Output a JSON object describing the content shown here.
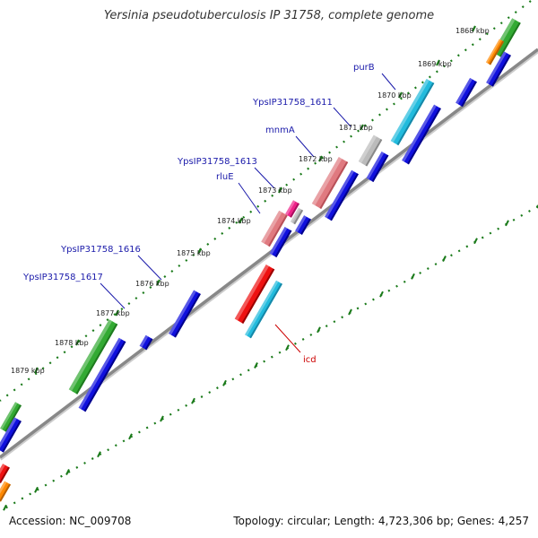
{
  "title": "Yersinia pseudotuberculosis IP 31758, complete genome",
  "footer": {
    "accession": "Accession: NC_009708",
    "summary": "Topology: circular; Length: 4,723,306 bp; Genes: 4,257"
  },
  "colors": {
    "dots": "#1a7a1a",
    "backbone": "#888888",
    "label_blue": "#1a1aaa",
    "label_red": "#cc0000",
    "gene_blue": "#1010dd",
    "gene_green": "#33aa33",
    "gene_cyan": "#22bbdd",
    "gene_red": "#ee1111",
    "gene_pink": "#e07a80",
    "gene_grey": "#bbbbbb",
    "gene_magenta": "#ee2288",
    "gene_orange": "#ff8800"
  },
  "ticks": [
    {
      "label": "1868 kbp"
    },
    {
      "label": "1869 kbp"
    },
    {
      "label": "1870 kbp"
    },
    {
      "label": "1871 kbp"
    },
    {
      "label": "1872 kbp"
    },
    {
      "label": "1873 kbp"
    },
    {
      "label": "1874 kbp"
    },
    {
      "label": "1875 kbp"
    },
    {
      "label": "1876 kbp"
    },
    {
      "label": "1877 kbp"
    },
    {
      "label": "1878 kbp"
    },
    {
      "label": "1879 kbp"
    }
  ],
  "gene_labels": [
    {
      "text": "purB",
      "color": "label_blue"
    },
    {
      "text": "YpsIP31758_1611",
      "color": "label_blue"
    },
    {
      "text": "mnmA",
      "color": "label_blue"
    },
    {
      "text": "YpsIP31758_1613",
      "color": "label_blue"
    },
    {
      "text": "rluE",
      "color": "label_blue"
    },
    {
      "text": "YpsIP31758_1616",
      "color": "label_blue"
    },
    {
      "text": "YpsIP31758_1617",
      "color": "label_blue"
    },
    {
      "text": "icd",
      "color": "label_red"
    }
  ]
}
